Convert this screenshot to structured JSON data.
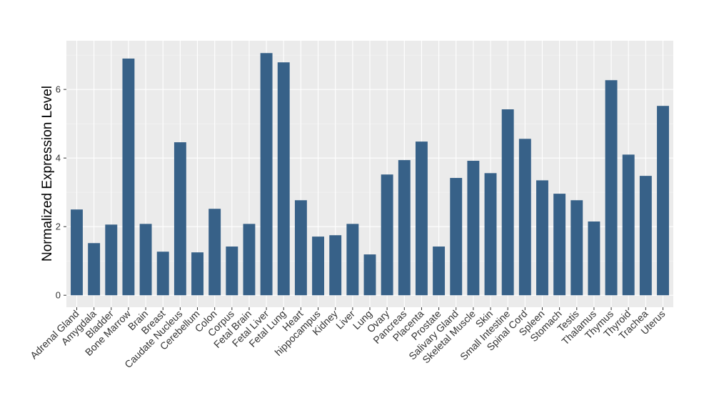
{
  "chart_data": {
    "type": "bar",
    "y_label": "Normalized Expression Level",
    "categories": [
      "Adrenal Gland",
      "Amygdala",
      "Bladder",
      "Bone Marrow",
      "Brain",
      "Breast",
      "Caudate Nucleus",
      "Cerebellum",
      "Colon",
      "Corpus",
      "Fetal Brain",
      "Fetal Liver",
      "Fetal Lung",
      "Heart",
      "hippocampus",
      "Kidney",
      "Liver",
      "Lung",
      "Ovary",
      "Pancreas",
      "Placenta",
      "Prostate",
      "Salivary Gland",
      "Skeletal Muscle",
      "Skin",
      "Small Intestine",
      "Spinal Cord",
      "Spleen",
      "Stomach",
      "Testis",
      "Thalamus",
      "Thymus",
      "Thyroid",
      "Trachea",
      "Uterus"
    ],
    "values": [
      2.5,
      1.52,
      2.06,
      6.9,
      2.08,
      1.27,
      4.46,
      1.25,
      2.52,
      1.42,
      2.08,
      7.06,
      6.79,
      2.77,
      1.71,
      1.75,
      2.08,
      1.19,
      3.52,
      3.94,
      4.48,
      1.42,
      3.42,
      3.92,
      3.56,
      5.42,
      4.56,
      3.35,
      2.96,
      2.77,
      2.15,
      6.27,
      4.1,
      3.48,
      5.52
    ],
    "color": "#376188",
    "ylim": [
      -0.35,
      7.42
    ],
    "yticks": [
      0,
      2,
      4,
      6
    ],
    "grid": true
  }
}
